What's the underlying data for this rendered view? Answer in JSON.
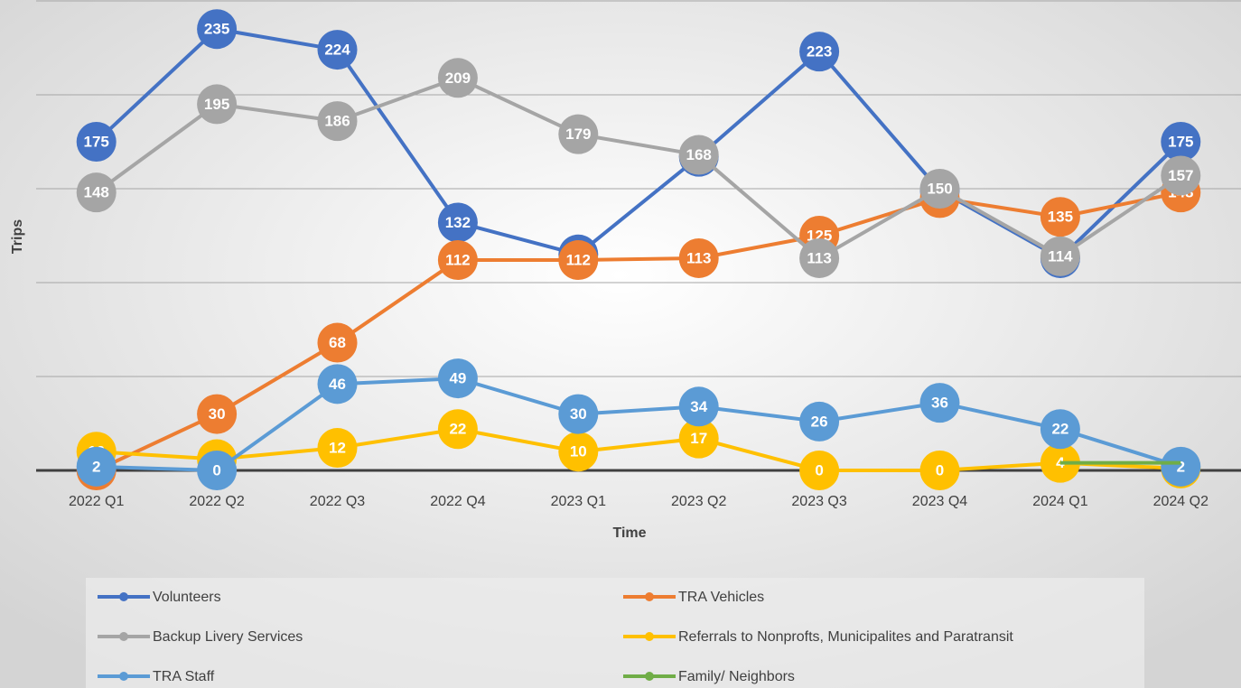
{
  "chart_data": {
    "type": "line",
    "categories": [
      "2022 Q1",
      "2022 Q2",
      "2022 Q3",
      "2022 Q4",
      "2023 Q1",
      "2023 Q2",
      "2023 Q3",
      "2023 Q4",
      "2024 Q1",
      "2024 Q2"
    ],
    "x_label": "Time",
    "y_label": "Trips",
    "ylim": [
      0,
      250
    ],
    "yticks": [
      0,
      50,
      100,
      150,
      200,
      250
    ],
    "ytick_labels": false,
    "grid": true,
    "legend": "bottom",
    "series": [
      {
        "name": "Volunteers",
        "color": "#4472c4",
        "values": [
          175,
          235,
          224,
          132,
          115,
          167,
          223,
          149,
          113,
          175
        ]
      },
      {
        "name": "TRA Vehicles",
        "color": "#ed7d31",
        "values": [
          0,
          30,
          68,
          112,
          112,
          113,
          125,
          145,
          135,
          148
        ]
      },
      {
        "name": "Backup Livery Services",
        "color": "#a5a5a5",
        "values": [
          148,
          195,
          186,
          209,
          179,
          168,
          113,
          150,
          114,
          157
        ]
      },
      {
        "name": "Referrals to Nonprofts, Municipalites and Paratransit",
        "color": "#ffc000",
        "values": [
          10,
          6,
          12,
          22,
          10,
          17,
          0,
          0,
          4,
          1
        ]
      },
      {
        "name": "TRA Staff",
        "color": "#5b9bd5",
        "values": [
          2,
          0,
          46,
          49,
          30,
          34,
          26,
          36,
          22,
          2
        ]
      },
      {
        "name": "Family/ Neighbors",
        "color": "#70ad47",
        "values": [
          null,
          null,
          null,
          null,
          null,
          null,
          null,
          null,
          4,
          4
        ]
      }
    ]
  }
}
